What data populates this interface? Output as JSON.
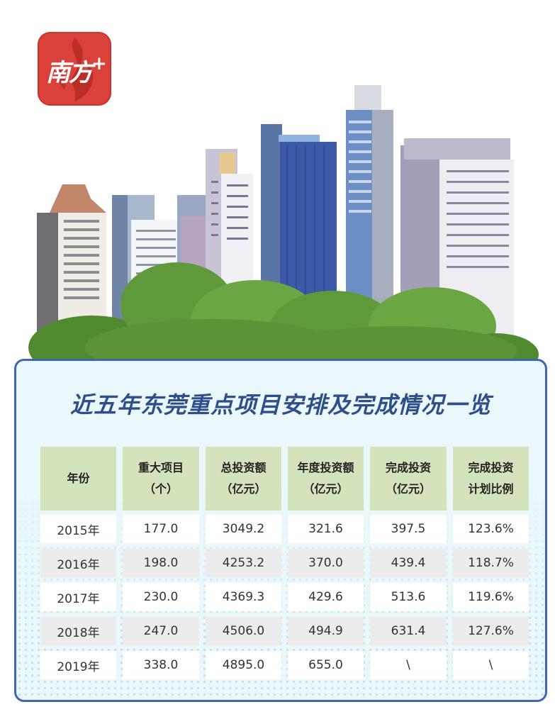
{
  "logo": {
    "text": "南方",
    "plus": "+"
  },
  "title": "近五年东莞重点项目安排及完成情况一览",
  "table": {
    "headers": [
      [
        "年份"
      ],
      [
        "重大项目",
        "（个）"
      ],
      [
        "总投资额",
        "（亿元）"
      ],
      [
        "年度投资额",
        "（亿元）"
      ],
      [
        "完成投资",
        "（亿元）"
      ],
      [
        "完成投资",
        "计划比例"
      ]
    ],
    "rows": [
      [
        "2015年",
        "177.0",
        "3049.2",
        "321.6",
        "397.5",
        "123.6%"
      ],
      [
        "2016年",
        "198.0",
        "4253.2",
        "370.0",
        "439.4",
        "118.7%"
      ],
      [
        "2017年",
        "230.0",
        "4369.3",
        "429.6",
        "513.6",
        "119.6%"
      ],
      [
        "2018年",
        "247.0",
        "4506.0",
        "494.9",
        "631.4",
        "127.6%"
      ],
      [
        "2019年",
        "338.0",
        "4895.0",
        "655.0",
        "\\",
        "\\"
      ]
    ]
  },
  "colors": {
    "logo_red": "#d9413a",
    "panel_border": "#3f67b4",
    "title": "#2f4f8a",
    "header_bg": "#d5e3bd",
    "tree_green": "#5f9a3a"
  }
}
